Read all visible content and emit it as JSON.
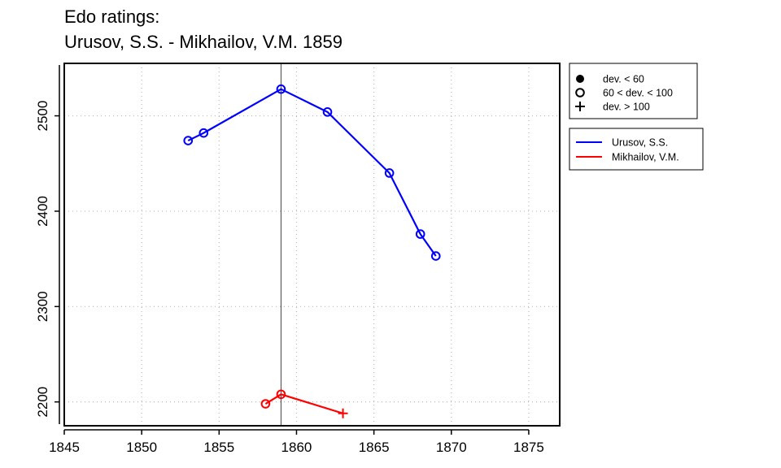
{
  "chart_data": {
    "type": "line",
    "title": "Edo ratings:",
    "subtitle": "Urusov, S.S. - Mikhailov, V.M. 1859",
    "xlabel": "",
    "ylabel": "",
    "xlim": [
      1845,
      1877
    ],
    "ylim": [
      2175,
      2555
    ],
    "x_ticks": [
      1845,
      1850,
      1855,
      1860,
      1865,
      1870,
      1875
    ],
    "y_ticks": [
      2200,
      2300,
      2400,
      2500
    ],
    "grid": true,
    "reference_line_x": 1859,
    "marker_legend": [
      {
        "label": "dev. < 60",
        "symbol": "filled-circle"
      },
      {
        "label": "60 < dev. < 100",
        "symbol": "open-circle"
      },
      {
        "label": "dev. > 100",
        "symbol": "plus"
      }
    ],
    "legend_placement": "right",
    "series": [
      {
        "name": "Urusov, S.S.",
        "color": "#0000ff",
        "points": [
          {
            "x": 1853,
            "y": 2474,
            "marker": "open-circle"
          },
          {
            "x": 1854,
            "y": 2482,
            "marker": "open-circle"
          },
          {
            "x": 1859,
            "y": 2528,
            "marker": "open-circle"
          },
          {
            "x": 1862,
            "y": 2504,
            "marker": "open-circle"
          },
          {
            "x": 1866,
            "y": 2440,
            "marker": "open-circle"
          },
          {
            "x": 1868,
            "y": 2376,
            "marker": "open-circle"
          },
          {
            "x": 1869,
            "y": 2353,
            "marker": "open-circle"
          }
        ]
      },
      {
        "name": "Mikhailov, V.M.",
        "color": "#ff0000",
        "points": [
          {
            "x": 1858,
            "y": 2198,
            "marker": "open-circle"
          },
          {
            "x": 1859,
            "y": 2208,
            "marker": "open-circle"
          },
          {
            "x": 1863,
            "y": 2188,
            "marker": "plus"
          }
        ]
      }
    ]
  }
}
